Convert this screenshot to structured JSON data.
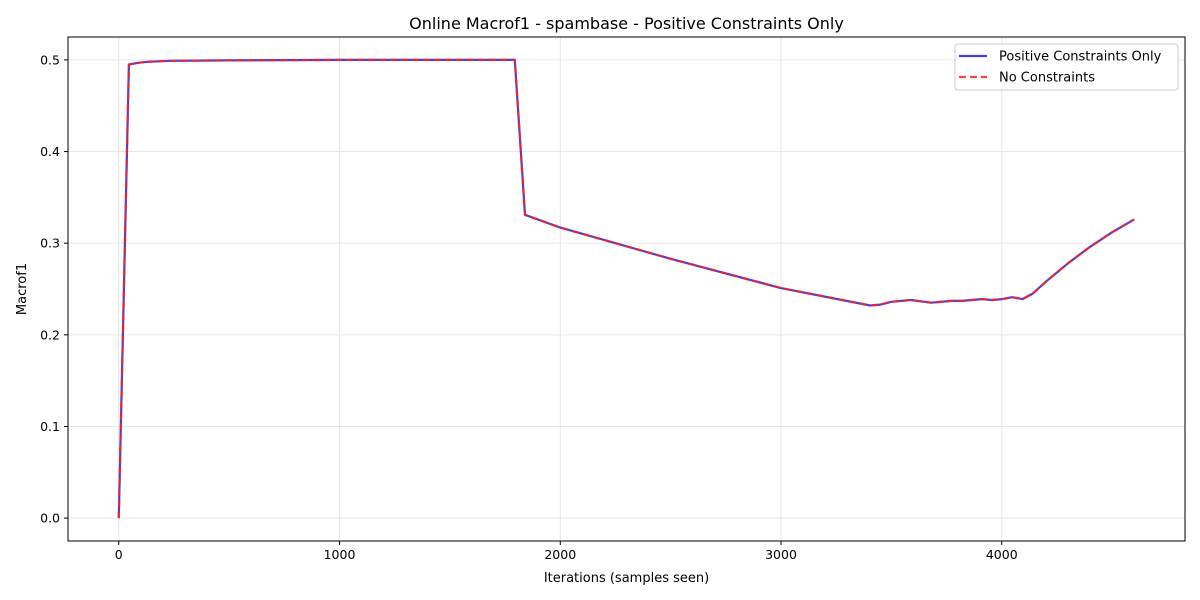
{
  "chart_data": {
    "type": "line",
    "title": "Online Macrof1 - spambase - Positive Constraints Only",
    "xlabel": "Iterations (samples seen)",
    "ylabel": "Macrof1",
    "xlim": [
      -230,
      4830
    ],
    "ylim": [
      -0.025,
      0.525
    ],
    "xticks": [
      0,
      1000,
      2000,
      3000,
      4000
    ],
    "yticks": [
      0.0,
      0.1,
      0.2,
      0.3,
      0.4,
      0.5
    ],
    "ytick_labels": [
      "0.0",
      "0.1",
      "0.2",
      "0.3",
      "0.4",
      "0.5"
    ],
    "grid": true,
    "legend_position": "top-right",
    "series": [
      {
        "name": "Positive Constraints Only",
        "color": "#2020e0",
        "style": "solid",
        "x": [
          0,
          46,
          92,
          138,
          184,
          230,
          500,
          1000,
          1500,
          1794,
          1840,
          2000,
          2500,
          3000,
          3404,
          3450,
          3500,
          3588,
          3680,
          3772,
          3818,
          3910,
          3956,
          4002,
          4048,
          4094,
          4140,
          4200,
          4300,
          4400,
          4500,
          4600
        ],
        "y": [
          0.0,
          0.495,
          0.497,
          0.498,
          0.4985,
          0.499,
          0.4995,
          0.5,
          0.5,
          0.5,
          0.331,
          0.317,
          0.283,
          0.251,
          0.232,
          0.233,
          0.236,
          0.238,
          0.235,
          0.237,
          0.237,
          0.239,
          0.238,
          0.239,
          0.241,
          0.239,
          0.245,
          0.258,
          0.278,
          0.296,
          0.312,
          0.326
        ]
      },
      {
        "name": "No Constraints",
        "color": "#ff2020",
        "style": "dashed",
        "x": [
          0,
          46,
          92,
          138,
          184,
          230,
          500,
          1000,
          1500,
          1794,
          1840,
          2000,
          2500,
          3000,
          3404,
          3450,
          3500,
          3588,
          3680,
          3772,
          3818,
          3910,
          3956,
          4002,
          4048,
          4094,
          4140,
          4200,
          4300,
          4400,
          4500,
          4600
        ],
        "y": [
          0.0,
          0.495,
          0.497,
          0.498,
          0.4985,
          0.499,
          0.4995,
          0.5,
          0.5,
          0.5,
          0.331,
          0.317,
          0.283,
          0.251,
          0.232,
          0.233,
          0.236,
          0.238,
          0.235,
          0.237,
          0.237,
          0.239,
          0.238,
          0.239,
          0.241,
          0.239,
          0.245,
          0.258,
          0.278,
          0.296,
          0.312,
          0.326
        ]
      }
    ]
  }
}
